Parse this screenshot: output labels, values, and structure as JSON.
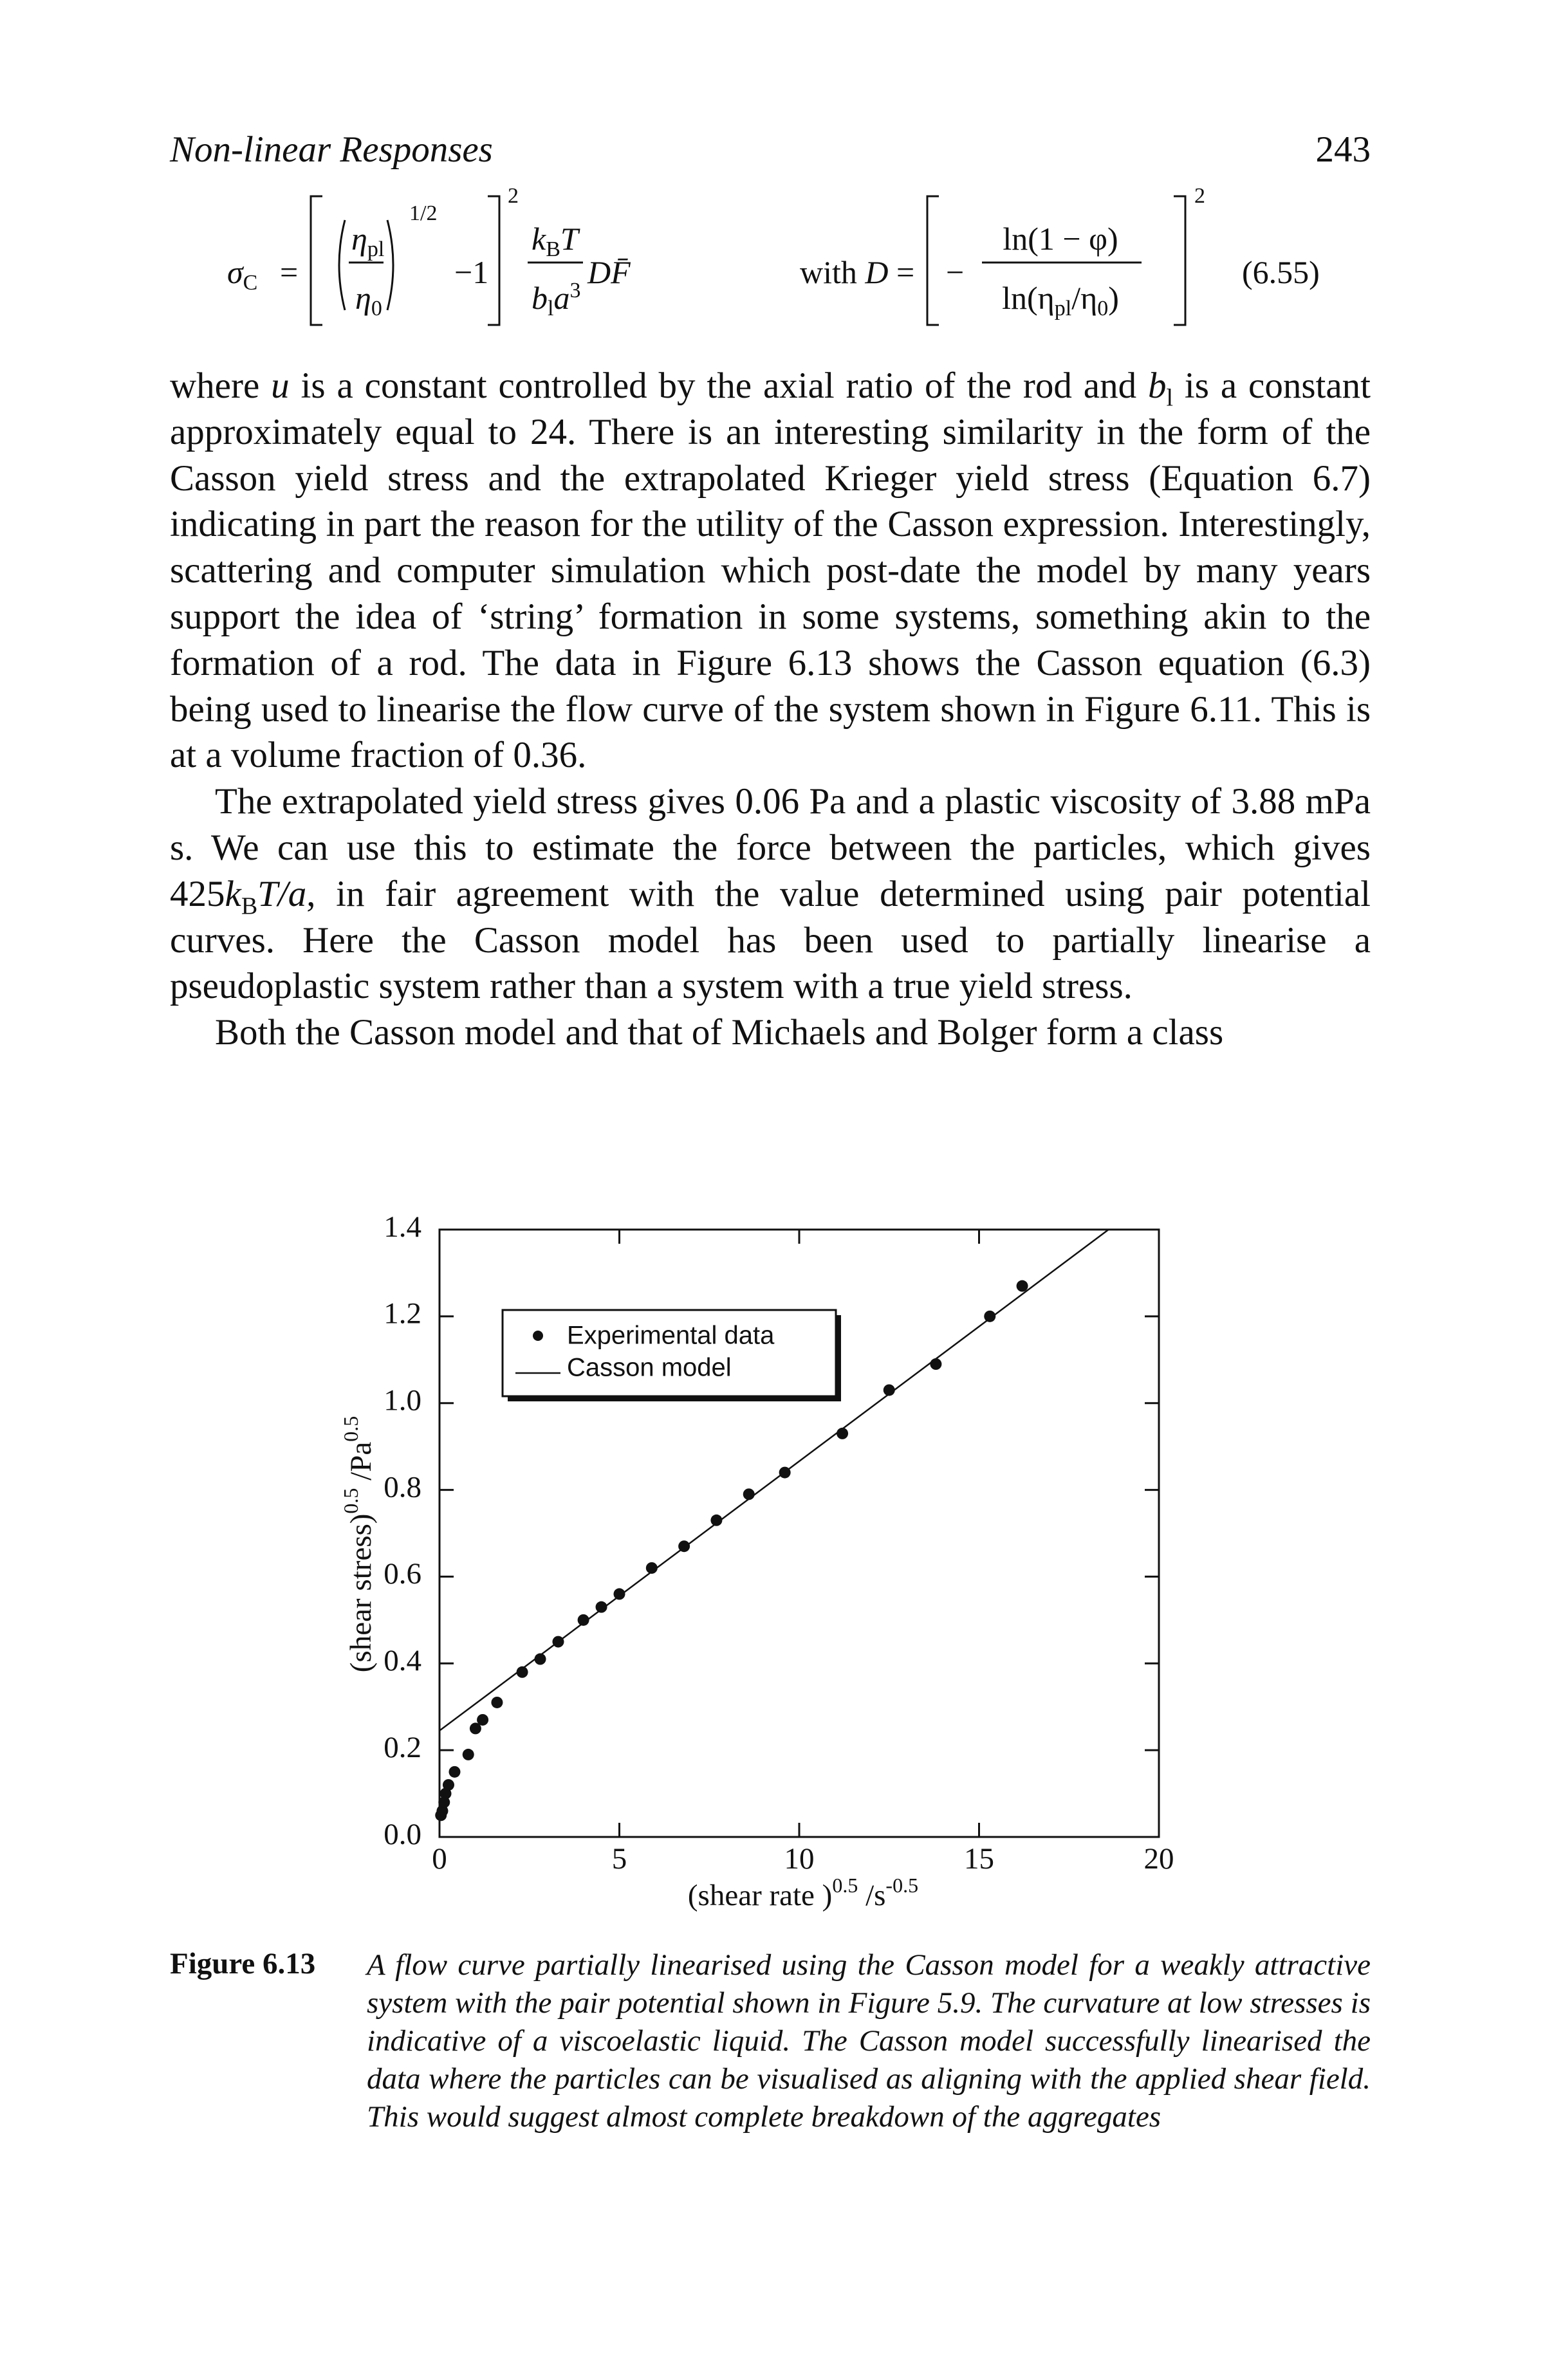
{
  "header": {
    "running_title": "Non-linear Responses",
    "page_number": "243"
  },
  "equation": {
    "sigma": "σ",
    "sigma_sub": "C",
    "equals": "=",
    "eta": "η",
    "pl": "pl",
    "zero": "0",
    "half": "1/2",
    "minus_one": "−1",
    "square": "2",
    "k": "k",
    "B": "B",
    "T": "T",
    "b": "b",
    "l": "l",
    "a": "a",
    "cube": "3",
    "DF": "DF̄",
    "with": "with",
    "D": "D",
    "equals2": "=",
    "minus": "−",
    "numerator": "ln(1 − φ)",
    "den_open": "ln(η",
    "den_slash": "/η",
    "den_close": ")",
    "square2": "2",
    "number": "(6.55)"
  },
  "paragraphs": [
    [
      "where ",
      "u",
      " is a constant controlled by the axial ratio of the rod and ",
      "b",
      "l",
      " is a constant approximately equal to 24. There is an interesting similarity in the form of the Casson yield stress and the extrapolated Krieger yield stress (Equation 6.7) indicating in part the reason for the utility of the Casson expression. Interestingly, scattering and computer simulation which post-date the model by many years support the idea of ‘string’ formation in some systems, something akin to the formation of a rod. The data in Figure 6.13 shows the Casson equation (6.3) being used to linearise the flow curve of the system shown in Figure 6.11. This is at a volume fraction of 0.36."
    ],
    [
      "The extrapolated yield stress gives 0.06 Pa and a plastic viscosity of 3.88 mPa s. We can use this to estimate the force between the particles, which gives 425",
      "k",
      "B",
      "T/a",
      ", in fair agreement with the value determined using pair potential curves. Here the Casson model has been used to partially linearise a pseudoplastic system rather than a system with a true yield stress."
    ],
    [
      "Both the Casson model and that of Michaels and Bolger form a class"
    ]
  ],
  "chart_data": {
    "type": "scatter",
    "x_label": [
      "(shear rate )",
      "0.5",
      " /s",
      "-0.5"
    ],
    "y_label": [
      "(shear stress)",
      "0.5",
      " /Pa",
      "0.5"
    ],
    "xlim": [
      0,
      20
    ],
    "ylim": [
      0,
      1.4
    ],
    "xticks": [
      0,
      5,
      10,
      15,
      20
    ],
    "yticks": [
      {
        "value": 0,
        "label": "0.0"
      },
      0.2,
      0.4,
      0.6,
      0.8,
      {
        "value": 1,
        "label": "1.0"
      },
      1.2,
      1.4
    ],
    "legend": "upper left",
    "series": [
      {
        "name": "Experimental data",
        "type": "scatter",
        "color": "#111111",
        "x": [
          0.04,
          0.08,
          0.13,
          0.17,
          0.25,
          0.42,
          0.8,
          1.0,
          1.2,
          1.6,
          2.3,
          2.8,
          3.3,
          4.0,
          4.5,
          5.0,
          5.9,
          6.8,
          7.7,
          8.6,
          9.6,
          11.2,
          12.5,
          13.8,
          15.3,
          16.2
        ],
        "values": [
          0.05,
          0.06,
          0.08,
          0.1,
          0.12,
          0.15,
          0.19,
          0.25,
          0.27,
          0.31,
          0.38,
          0.41,
          0.45,
          0.5,
          0.53,
          0.56,
          0.62,
          0.67,
          0.73,
          0.79,
          0.84,
          0.93,
          1.03,
          1.09,
          1.2,
          1.27
        ]
      },
      {
        "name": "Casson model",
        "type": "line",
        "color": "#111111",
        "x": [
          0,
          18.6
        ],
        "values": [
          0.245,
          1.4
        ]
      }
    ]
  },
  "caption": {
    "label": "Figure 6.13",
    "text": "A flow curve partially linearised using the Casson model for a weakly attractive system with the pair potential shown in Figure 5.9. The curvature at low stresses is indicative of a viscoelastic liquid. The Casson model successfully linearised the data where the particles can be visualised as aligning with the applied shear field. This would suggest almost complete breakdown of the aggregates"
  }
}
